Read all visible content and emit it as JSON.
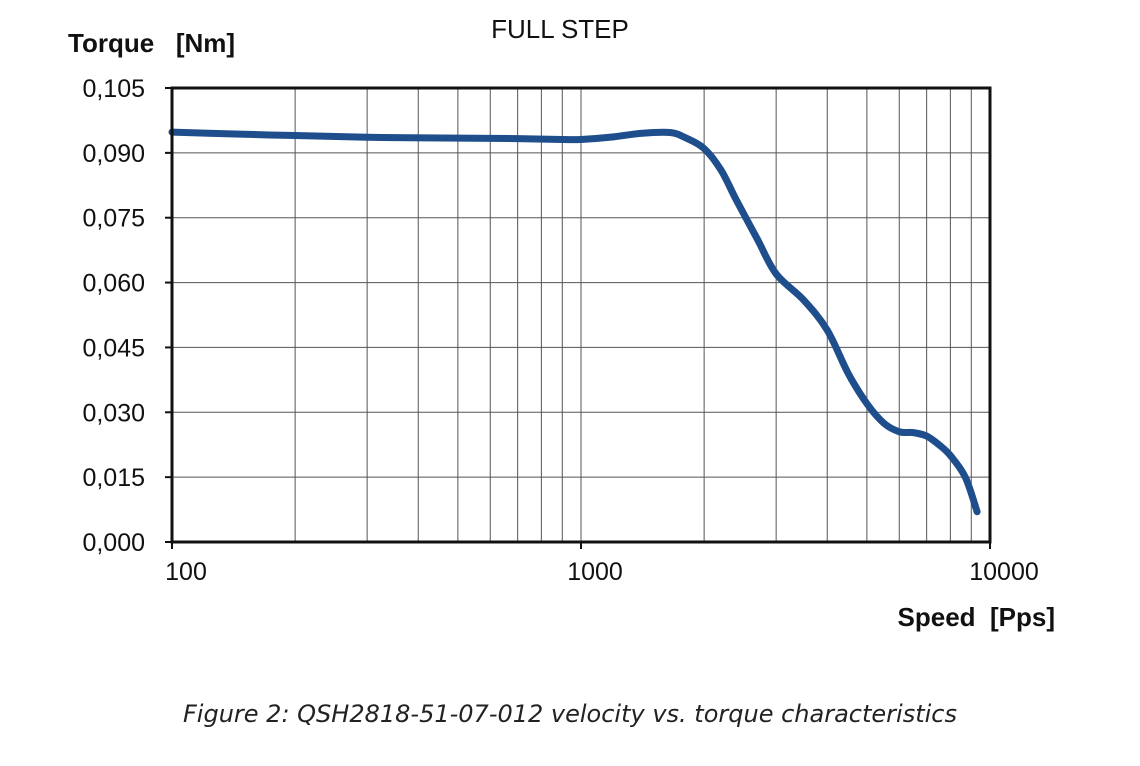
{
  "chart_data": {
    "type": "line",
    "title": "FULL STEP",
    "ylabel": "Torque   [Nm]",
    "xlabel": "Speed  [Pps]",
    "x_scale": "log",
    "xlim": [
      100,
      10000
    ],
    "ylim": [
      0,
      0.105
    ],
    "x_ticks": [
      100,
      1000,
      10000
    ],
    "x_tick_labels": [
      "100",
      "1000",
      "10000"
    ],
    "y_ticks": [
      0,
      0.015,
      0.03,
      0.045,
      0.06,
      0.075,
      0.09,
      0.105
    ],
    "y_tick_labels": [
      "0,000",
      "0,015",
      "0,030",
      "0,045",
      "0,060",
      "0,075",
      "0,090",
      "0,105"
    ],
    "grid": true,
    "series": [
      {
        "color": "#1f4e8c",
        "points": [
          [
            100,
            0.0948
          ],
          [
            150,
            0.0943
          ],
          [
            200,
            0.094
          ],
          [
            300,
            0.0936
          ],
          [
            500,
            0.0934
          ],
          [
            700,
            0.0933
          ],
          [
            900,
            0.0931
          ],
          [
            1000,
            0.0931
          ],
          [
            1200,
            0.0937
          ],
          [
            1400,
            0.0945
          ],
          [
            1650,
            0.0947
          ],
          [
            1800,
            0.0935
          ],
          [
            2000,
            0.091
          ],
          [
            2200,
            0.086
          ],
          [
            2400,
            0.079
          ],
          [
            2700,
            0.07
          ],
          [
            3000,
            0.062
          ],
          [
            3500,
            0.056
          ],
          [
            4000,
            0.049
          ],
          [
            4500,
            0.039
          ],
          [
            5000,
            0.032
          ],
          [
            5500,
            0.0275
          ],
          [
            6000,
            0.0255
          ],
          [
            6500,
            0.0253
          ],
          [
            7000,
            0.0245
          ],
          [
            7500,
            0.0225
          ],
          [
            8000,
            0.02
          ],
          [
            8700,
            0.015
          ],
          [
            9300,
            0.007
          ]
        ]
      }
    ]
  },
  "caption": "Figure 2: QSH2818-51-07-012 velocity vs. torque characteristics"
}
